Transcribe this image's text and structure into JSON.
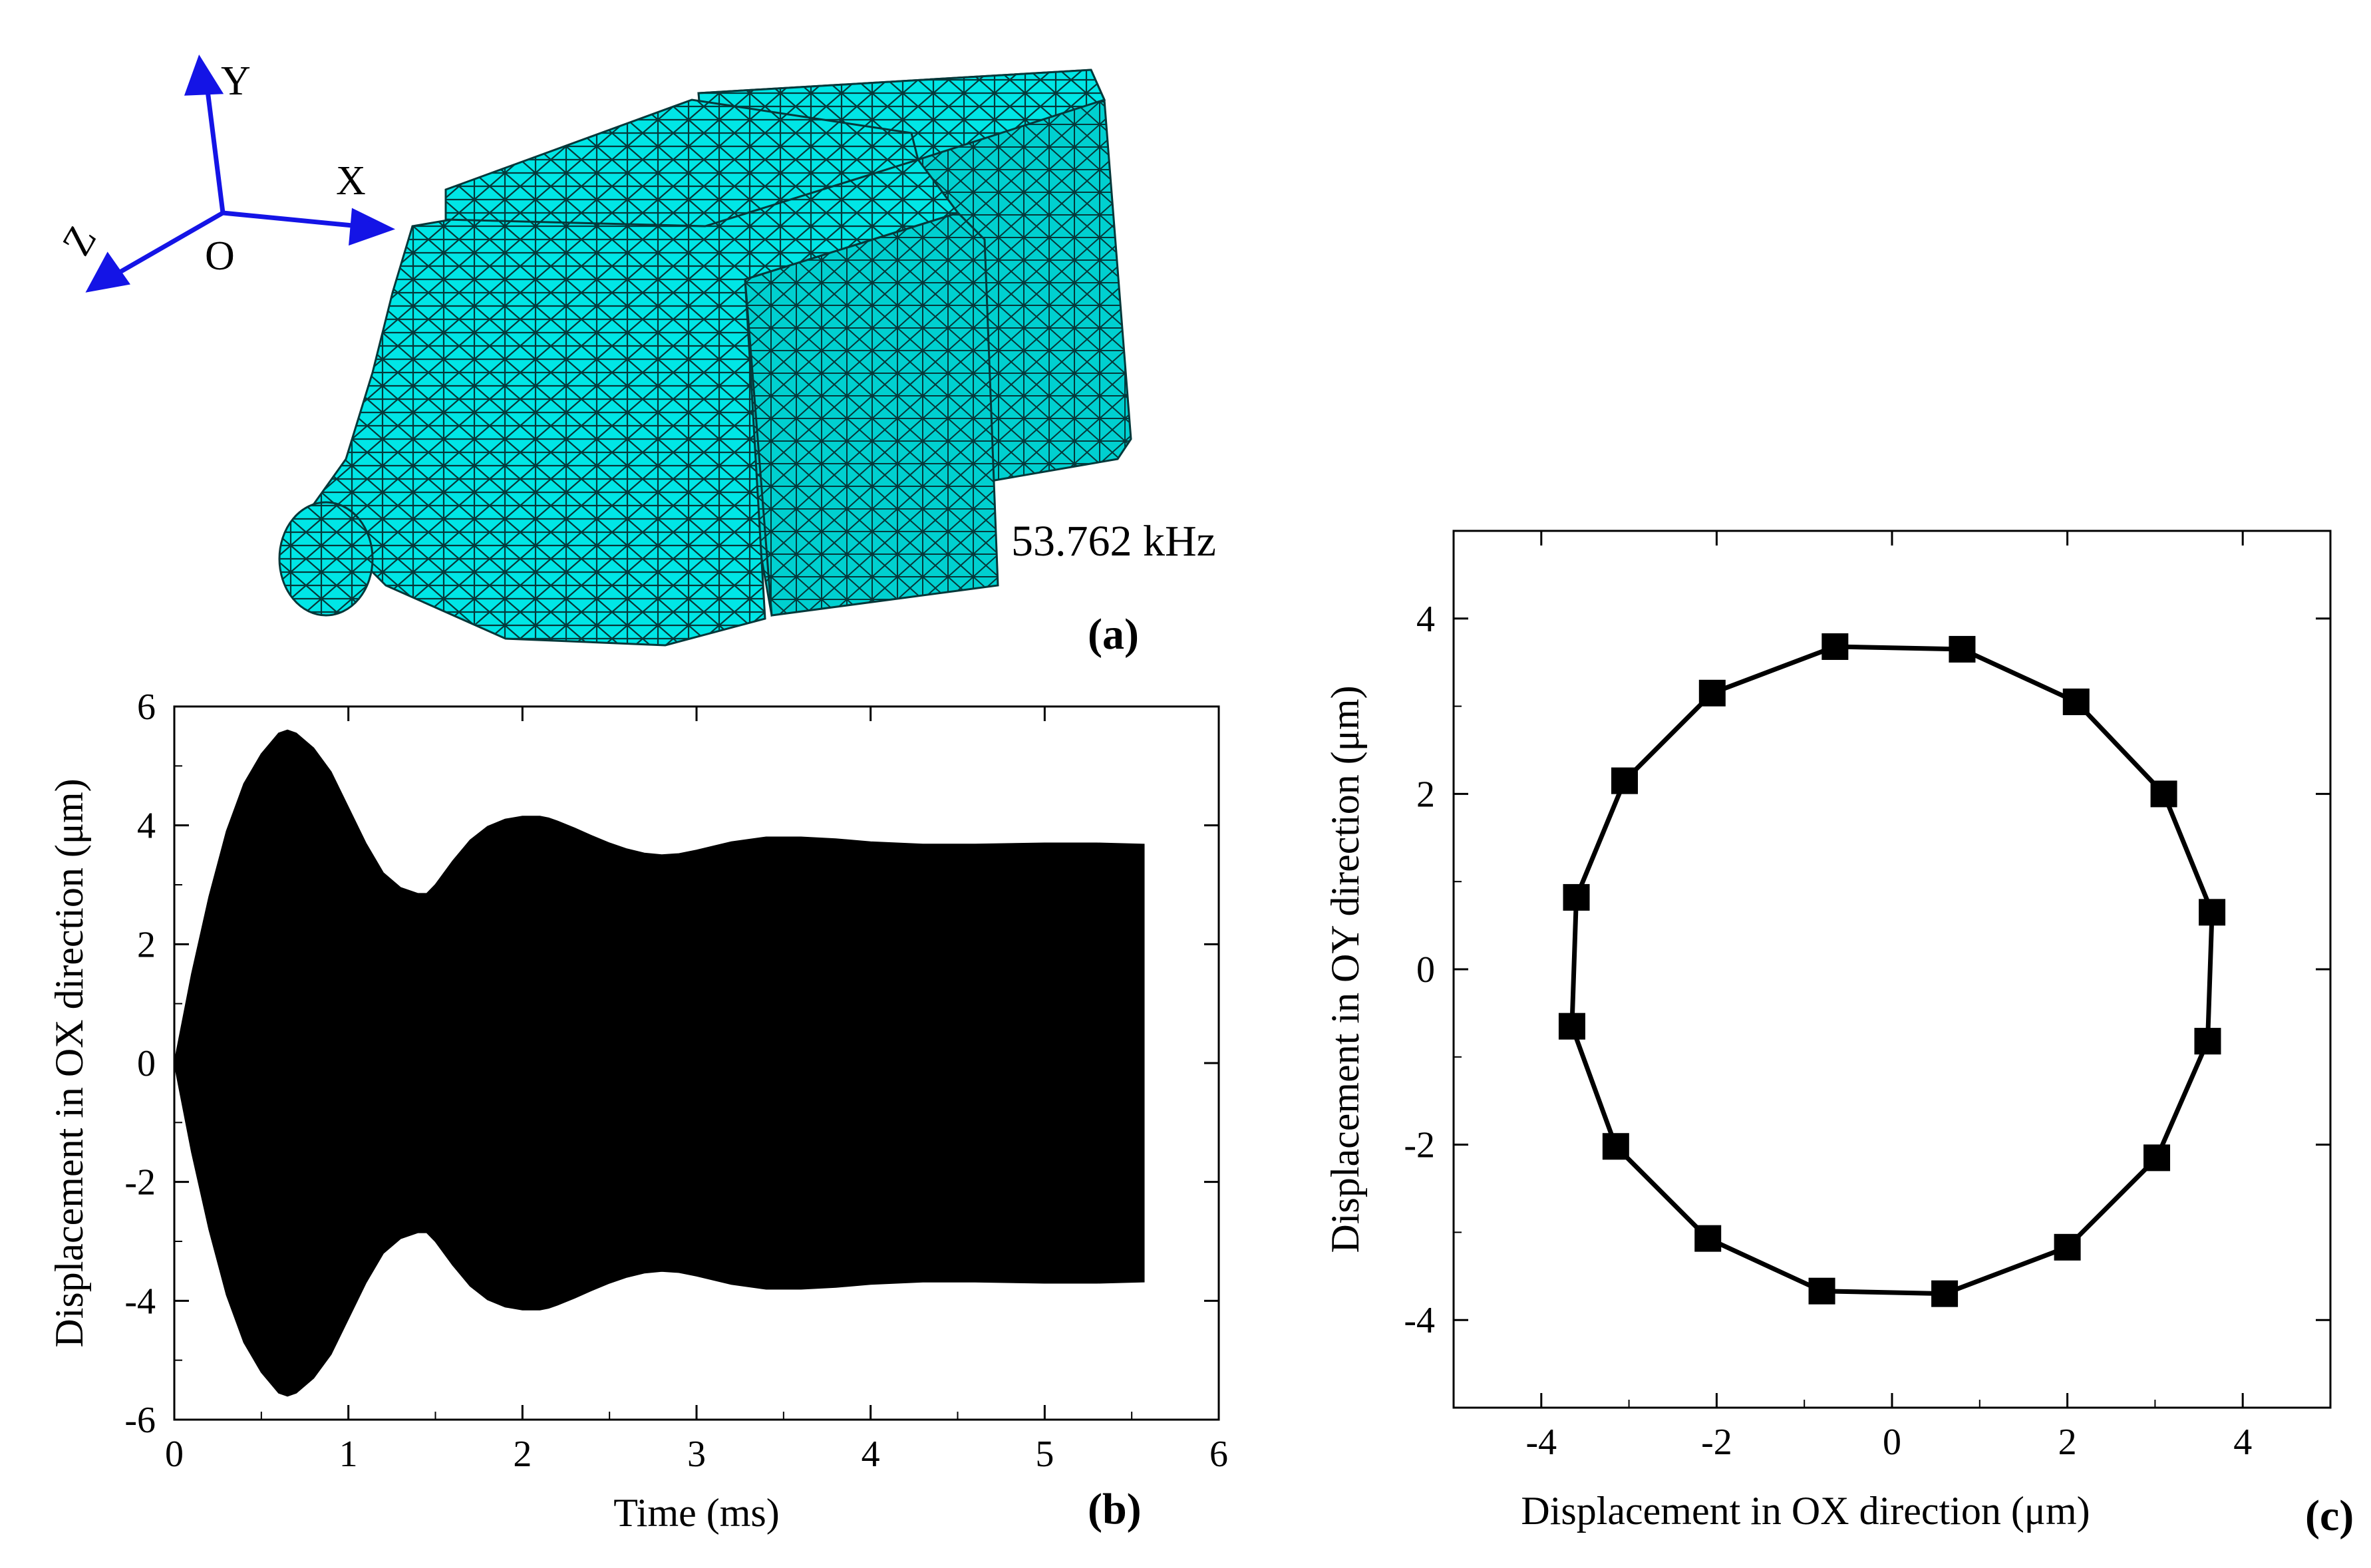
{
  "panel_a": {
    "label": "(a)",
    "frequency": "53.762 kHz",
    "axis_labels": {
      "x": "X",
      "y": "Y",
      "z": "Z",
      "origin": "O"
    },
    "mesh_color": "#00e5e5"
  },
  "chart_data": [
    {
      "panel": "(b)",
      "type": "area",
      "xlabel": "Time (ms)",
      "ylabel": "Displacement in OX direction (μm)",
      "xlim": [
        0,
        6
      ],
      "ylim": [
        -6,
        6
      ],
      "xticks": [
        0,
        1,
        2,
        3,
        4,
        5,
        6
      ],
      "yticks": [
        -6,
        -4,
        -2,
        0,
        2,
        4,
        6
      ],
      "grid": false,
      "series": [
        {
          "color": "#000000",
          "x": [
            0,
            0.1,
            0.2,
            0.3,
            0.4,
            0.5,
            0.6,
            0.65,
            0.7,
            0.8,
            0.9,
            1.0,
            1.1,
            1.2,
            1.3,
            1.4,
            1.45,
            1.5,
            1.6,
            1.7,
            1.8,
            1.9,
            2.0,
            2.1,
            2.15,
            2.2,
            2.3,
            2.4,
            2.5,
            2.6,
            2.7,
            2.8,
            2.9,
            3.0,
            3.2,
            3.4,
            3.6,
            3.8,
            4.0,
            4.3,
            4.6,
            5.0,
            5.3,
            5.57
          ],
          "upper": [
            0,
            1.5,
            2.8,
            3.9,
            4.7,
            5.2,
            5.55,
            5.6,
            5.55,
            5.3,
            4.9,
            4.3,
            3.7,
            3.2,
            2.95,
            2.85,
            2.85,
            3.0,
            3.4,
            3.75,
            3.98,
            4.1,
            4.15,
            4.15,
            4.12,
            4.07,
            3.95,
            3.82,
            3.7,
            3.6,
            3.53,
            3.5,
            3.52,
            3.58,
            3.72,
            3.8,
            3.8,
            3.77,
            3.72,
            3.68,
            3.68,
            3.7,
            3.7,
            3.68
          ],
          "lower": [
            0,
            -1.5,
            -2.8,
            -3.9,
            -4.7,
            -5.2,
            -5.55,
            -5.6,
            -5.55,
            -5.3,
            -4.9,
            -4.3,
            -3.7,
            -3.2,
            -2.95,
            -2.85,
            -2.85,
            -3.0,
            -3.4,
            -3.75,
            -3.98,
            -4.1,
            -4.15,
            -4.15,
            -4.12,
            -4.07,
            -3.95,
            -3.82,
            -3.7,
            -3.6,
            -3.53,
            -3.5,
            -3.52,
            -3.58,
            -3.72,
            -3.8,
            -3.8,
            -3.77,
            -3.72,
            -3.68,
            -3.68,
            -3.7,
            -3.7,
            -3.68
          ]
        }
      ]
    },
    {
      "panel": "(c)",
      "type": "scatter",
      "xlabel": "Displacement in OX direction (μm)",
      "ylabel": "Displacement in OY direction (μm)",
      "xlim": [
        -5,
        5
      ],
      "ylim": [
        -5,
        5
      ],
      "xticks": [
        -4,
        -2,
        0,
        2,
        4
      ],
      "yticks": [
        -4,
        -2,
        0,
        2,
        4
      ],
      "grid": false,
      "marker": "square",
      "connected": true,
      "series": [
        {
          "color": "#000000",
          "points": [
            [
              0.8,
              3.65
            ],
            [
              2.1,
              3.05
            ],
            [
              3.1,
              2.0
            ],
            [
              3.65,
              0.65
            ],
            [
              3.6,
              -0.82
            ],
            [
              3.02,
              -2.15
            ],
            [
              2.0,
              -3.17
            ],
            [
              0.6,
              -3.7
            ],
            [
              -0.8,
              -3.67
            ],
            [
              -2.1,
              -3.07
            ],
            [
              -3.15,
              -2.02
            ],
            [
              -3.65,
              -0.65
            ],
            [
              -3.6,
              0.82
            ],
            [
              -3.05,
              2.15
            ],
            [
              -2.05,
              3.15
            ],
            [
              -0.65,
              3.68
            ]
          ]
        }
      ]
    }
  ]
}
